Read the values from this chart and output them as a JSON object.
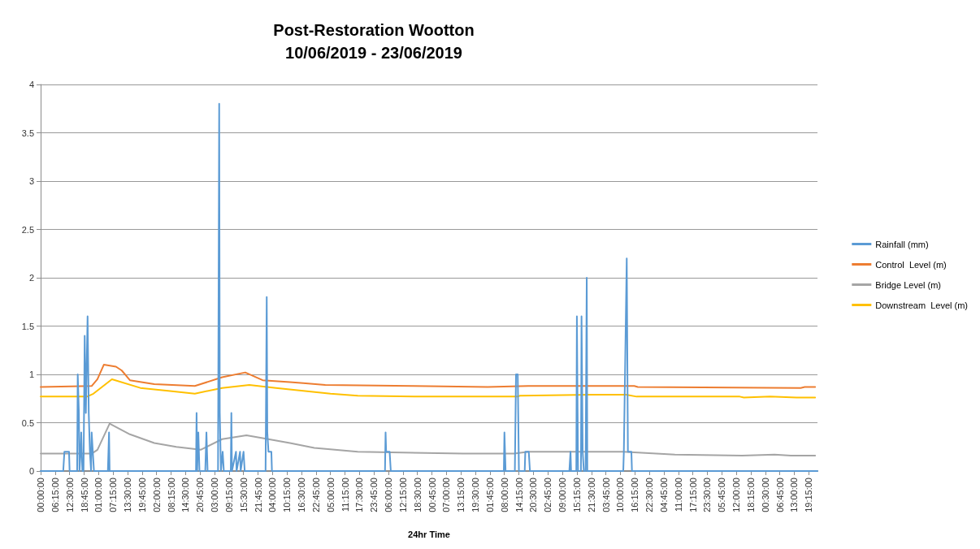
{
  "chart_data": {
    "type": "line",
    "title": "Post-Restoration Wootton",
    "subtitle": "10/06/2019 - 23/06/2019",
    "xlabel": "24hr Time",
    "xlim": [
      "2019-06-10T00:00",
      "2019-06-23T23:00"
    ],
    "ylim": [
      0,
      4
    ],
    "yticks": [
      0,
      0.5,
      1,
      1.5,
      2,
      2.5,
      3,
      3.5,
      4
    ],
    "xticks": [
      {
        "value": "2019-06-10T00:00",
        "label": "00:00:00"
      },
      {
        "value": "2019-06-10T06:15",
        "label": "06:15:00"
      },
      {
        "value": "2019-06-10T12:30",
        "label": "12:30:00"
      },
      {
        "value": "2019-06-10T18:45",
        "label": "18:45:00"
      },
      {
        "value": "2019-06-11T01:00",
        "label": "01:00:00"
      },
      {
        "value": "2019-06-11T07:15",
        "label": "07:15:00"
      },
      {
        "value": "2019-06-11T13:30",
        "label": "13:30:00"
      },
      {
        "value": "2019-06-11T19:45",
        "label": "19:45:00"
      },
      {
        "value": "2019-06-12T02:00",
        "label": "02:00:00"
      },
      {
        "value": "2019-06-12T08:15",
        "label": "08:15:00"
      },
      {
        "value": "2019-06-12T14:30",
        "label": "14:30:00"
      },
      {
        "value": "2019-06-12T20:45",
        "label": "20:45:00"
      },
      {
        "value": "2019-06-13T03:00",
        "label": "03:00:00"
      },
      {
        "value": "2019-06-13T09:15",
        "label": "09:15:00"
      },
      {
        "value": "2019-06-13T15:30",
        "label": "15:30:00"
      },
      {
        "value": "2019-06-13T21:45",
        "label": "21:45:00"
      },
      {
        "value": "2019-06-14T04:00",
        "label": "04:00:00"
      },
      {
        "value": "2019-06-14T10:15",
        "label": "10:15:00"
      },
      {
        "value": "2019-06-14T16:30",
        "label": "16:30:00"
      },
      {
        "value": "2019-06-14T22:45",
        "label": "22:45:00"
      },
      {
        "value": "2019-06-15T05:00",
        "label": "05:00:00"
      },
      {
        "value": "2019-06-15T11:15",
        "label": "11:15:00"
      },
      {
        "value": "2019-06-15T17:30",
        "label": "17:30:00"
      },
      {
        "value": "2019-06-15T23:45",
        "label": "23:45:00"
      },
      {
        "value": "2019-06-16T06:00",
        "label": "06:00:00"
      },
      {
        "value": "2019-06-16T12:15",
        "label": "12:15:00"
      },
      {
        "value": "2019-06-16T18:30",
        "label": "18:30:00"
      },
      {
        "value": "2019-06-17T00:45",
        "label": "00:45:00"
      },
      {
        "value": "2019-06-17T07:00",
        "label": "07:00:00"
      },
      {
        "value": "2019-06-17T13:15",
        "label": "13:15:00"
      },
      {
        "value": "2019-06-17T19:30",
        "label": "19:30:00"
      },
      {
        "value": "2019-06-18T01:45",
        "label": "01:45:00"
      },
      {
        "value": "2019-06-18T08:00",
        "label": "08:00:00"
      },
      {
        "value": "2019-06-18T14:15",
        "label": "14:15:00"
      },
      {
        "value": "2019-06-18T20:30",
        "label": "20:30:00"
      },
      {
        "value": "2019-06-19T02:45",
        "label": "02:45:00"
      },
      {
        "value": "2019-06-19T09:00",
        "label": "09:00:00"
      },
      {
        "value": "2019-06-19T15:15",
        "label": "15:15:00"
      },
      {
        "value": "2019-06-19T21:30",
        "label": "21:30:00"
      },
      {
        "value": "2019-06-20T03:45",
        "label": "03:45:00"
      },
      {
        "value": "2019-06-20T10:00",
        "label": "10:00:00"
      },
      {
        "value": "2019-06-20T16:15",
        "label": "16:15:00"
      },
      {
        "value": "2019-06-20T22:30",
        "label": "22:30:00"
      },
      {
        "value": "2019-06-21T04:45",
        "label": "04:45:00"
      },
      {
        "value": "2019-06-21T11:00",
        "label": "11:00:00"
      },
      {
        "value": "2019-06-21T17:15",
        "label": "17:15:00"
      },
      {
        "value": "2019-06-21T23:30",
        "label": "23:30:00"
      },
      {
        "value": "2019-06-22T05:45",
        "label": "05:45:00"
      },
      {
        "value": "2019-06-22T12:00",
        "label": "12:00:00"
      },
      {
        "value": "2019-06-22T18:15",
        "label": "18:15:00"
      },
      {
        "value": "2019-06-23T00:30",
        "label": "00:30:00"
      },
      {
        "value": "2019-06-23T06:45",
        "label": "06:45:00"
      },
      {
        "value": "2019-06-23T13:00",
        "label": "13:00:00"
      },
      {
        "value": "2019-06-23T19:15",
        "label": "19:15:00"
      }
    ],
    "grid": "y",
    "legend": "right",
    "marker": "none",
    "series": [
      {
        "name": "Rainfall (mm)",
        "color": "#5b9bd5",
        "x": [
          "2019-06-10T00:00",
          "2019-06-10T09:45",
          "2019-06-10T10:15",
          "2019-06-10T12:15",
          "2019-06-10T12:30",
          "2019-06-10T15:45",
          "2019-06-10T16:00",
          "2019-06-10T16:30",
          "2019-06-10T16:45",
          "2019-06-10T17:15",
          "2019-06-10T17:30",
          "2019-06-10T18:00",
          "2019-06-10T18:30",
          "2019-06-10T19:00",
          "2019-06-10T19:30",
          "2019-06-10T20:15",
          "2019-06-10T20:45",
          "2019-06-10T21:15",
          "2019-06-10T21:45",
          "2019-06-10T22:00",
          "2019-06-10T22:30",
          "2019-06-10T23:00",
          "2019-06-11T05:00",
          "2019-06-11T05:30",
          "2019-06-11T05:45",
          "2019-06-12T19:00",
          "2019-06-12T19:15",
          "2019-06-12T19:30",
          "2019-06-12T20:00",
          "2019-06-12T20:30",
          "2019-06-12T23:00",
          "2019-06-12T23:30",
          "2019-06-13T00:00",
          "2019-06-13T04:30",
          "2019-06-13T05:00",
          "2019-06-13T05:15",
          "2019-06-13T05:45",
          "2019-06-13T06:30",
          "2019-06-13T07:00",
          "2019-06-13T10:00",
          "2019-06-13T10:15",
          "2019-06-13T10:30",
          "2019-06-13T12:15",
          "2019-06-13T12:30",
          "2019-06-13T14:00",
          "2019-06-13T14:15",
          "2019-06-13T15:30",
          "2019-06-13T16:00",
          "2019-06-14T01:00",
          "2019-06-14T01:30",
          "2019-06-14T01:45",
          "2019-06-14T02:15",
          "2019-06-14T03:30",
          "2019-06-14T03:45",
          "2019-06-16T04:30",
          "2019-06-16T04:45",
          "2019-06-16T05:00",
          "2019-06-16T06:30",
          "2019-06-16T07:00",
          "2019-06-18T07:45",
          "2019-06-18T08:00",
          "2019-06-18T08:30",
          "2019-06-18T12:30",
          "2019-06-18T13:00",
          "2019-06-18T13:45",
          "2019-06-18T14:15",
          "2019-06-18T16:45",
          "2019-06-18T17:00",
          "2019-06-18T18:30",
          "2019-06-18T19:00",
          "2019-06-19T12:00",
          "2019-06-19T12:30",
          "2019-06-19T12:45",
          "2019-06-19T15:00",
          "2019-06-19T15:15",
          "2019-06-19T15:45",
          "2019-06-19T17:00",
          "2019-06-19T17:15",
          "2019-06-19T17:45",
          "2019-06-19T18:15",
          "2019-06-19T19:00",
          "2019-06-19T19:30",
          "2019-06-19T19:45",
          "2019-06-20T11:15",
          "2019-06-20T11:30",
          "2019-06-20T12:45",
          "2019-06-20T13:15",
          "2019-06-20T14:45",
          "2019-06-20T15:00",
          "2019-06-23T23:00"
        ],
        "values": [
          0,
          0,
          0.2,
          0.2,
          0,
          0,
          1.0,
          0.6,
          0,
          0.2,
          0.4,
          0,
          0,
          1.4,
          0.6,
          1.6,
          0.6,
          0.2,
          0,
          0.4,
          0.2,
          0,
          0,
          0.4,
          0,
          0,
          0.6,
          0,
          0.4,
          0,
          0,
          0.4,
          0,
          0,
          3.8,
          0.6,
          0,
          0.2,
          0,
          0,
          0.6,
          0,
          0.2,
          0,
          0.2,
          0,
          0.2,
          0,
          0,
          1.8,
          0.4,
          0.2,
          0.2,
          0,
          0,
          0.4,
          0.2,
          0.2,
          0,
          0,
          0.4,
          0,
          0,
          1.0,
          1.0,
          0,
          0,
          0.2,
          0.2,
          0,
          0,
          0.2,
          0,
          0,
          1.6,
          0,
          0,
          1.6,
          0.2,
          0,
          0,
          2.0,
          0,
          0,
          0.2,
          2.2,
          0.2,
          0.2,
          0,
          0
        ]
      },
      {
        "name": "Control  Level (m)",
        "color": "#ed7d31",
        "x": [
          "2019-06-10T00:00",
          "2019-06-10T22:00",
          "2019-06-11T00:30",
          "2019-06-11T03:15",
          "2019-06-11T08:30",
          "2019-06-11T11:00",
          "2019-06-11T14:30",
          "2019-06-12T01:00",
          "2019-06-12T18:30",
          "2019-06-13T06:15",
          "2019-06-13T16:15",
          "2019-06-13T23:45",
          "2019-06-14T11:30",
          "2019-06-14T17:15",
          "2019-06-15T02:45",
          "2019-06-16T16:15",
          "2019-06-18T00:45",
          "2019-06-18T18:15",
          "2019-06-20T16:00",
          "2019-06-20T17:30",
          "2019-06-23T15:45",
          "2019-06-23T17:30",
          "2019-06-23T22:00"
        ],
        "values": [
          0.87,
          0.88,
          0.95,
          1.1,
          1.08,
          1.04,
          0.94,
          0.9,
          0.88,
          0.97,
          1.02,
          0.94,
          0.92,
          0.91,
          0.89,
          0.88,
          0.87,
          0.88,
          0.88,
          0.87,
          0.86,
          0.87,
          0.87
        ]
      },
      {
        "name": "Bridge Level (m)",
        "color": "#a5a5a5",
        "x": [
          "2019-06-10T00:00",
          "2019-06-10T22:00",
          "2019-06-11T00:30",
          "2019-06-11T05:45",
          "2019-06-11T14:30",
          "2019-06-12T01:00",
          "2019-06-12T10:30",
          "2019-06-12T21:00",
          "2019-06-13T06:15",
          "2019-06-13T16:45",
          "2019-06-13T23:45",
          "2019-06-14T11:30",
          "2019-06-14T22:00",
          "2019-06-15T16:45",
          "2019-06-17T14:15",
          "2019-06-18T12:15",
          "2019-06-18T18:15",
          "2019-06-20T11:15",
          "2019-06-21T09:30",
          "2019-06-22T14:30",
          "2019-06-23T04:30",
          "2019-06-23T11:30",
          "2019-06-23T22:00"
        ],
        "values": [
          0.18,
          0.18,
          0.22,
          0.49,
          0.38,
          0.29,
          0.25,
          0.22,
          0.33,
          0.37,
          0.34,
          0.29,
          0.24,
          0.2,
          0.18,
          0.18,
          0.2,
          0.2,
          0.17,
          0.16,
          0.17,
          0.16,
          0.16
        ]
      },
      {
        "name": "Downstream  Level (m)",
        "color": "#ffc000",
        "x": [
          "2019-06-10T00:00",
          "2019-06-10T20:00",
          "2019-06-10T22:45",
          "2019-06-11T06:45",
          "2019-06-11T19:00",
          "2019-06-12T07:00",
          "2019-06-12T18:30",
          "2019-06-13T06:15",
          "2019-06-13T18:00",
          "2019-06-14T05:30",
          "2019-06-15T05:00",
          "2019-06-15T16:45",
          "2019-06-16T20:45",
          "2019-06-18T13:45",
          "2019-06-18T14:45",
          "2019-06-19T21:15",
          "2019-06-20T12:30",
          "2019-06-20T17:00",
          "2019-06-22T13:30",
          "2019-06-22T15:15",
          "2019-06-23T02:30",
          "2019-06-23T14:00",
          "2019-06-23T22:00"
        ],
        "values": [
          0.77,
          0.77,
          0.8,
          0.95,
          0.86,
          0.83,
          0.8,
          0.86,
          0.89,
          0.86,
          0.8,
          0.78,
          0.77,
          0.77,
          0.78,
          0.79,
          0.79,
          0.77,
          0.77,
          0.76,
          0.77,
          0.76,
          0.76
        ]
      }
    ]
  }
}
